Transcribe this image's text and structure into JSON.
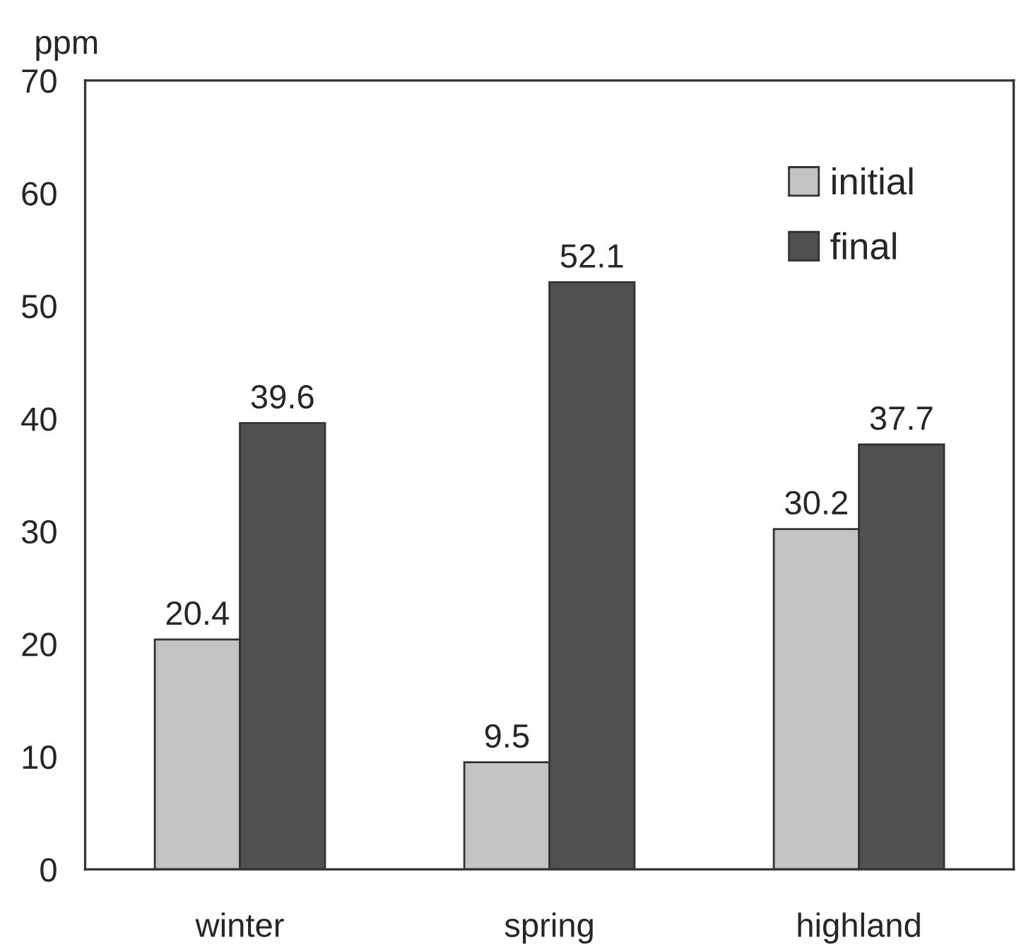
{
  "chart_data": {
    "type": "bar",
    "ylabel": "ppm",
    "categories": [
      "winter",
      "spring",
      "highland"
    ],
    "series": [
      {
        "name": "initial",
        "color": "#c4c4c4",
        "values": [
          20.4,
          9.5,
          30.2
        ]
      },
      {
        "name": "final",
        "color": "#505050",
        "values": [
          39.6,
          52.1,
          37.7
        ]
      }
    ],
    "ylim": [
      0,
      70
    ],
    "yticks": [
      0,
      10,
      20,
      30,
      40,
      50,
      60,
      70
    ],
    "data_labels": true,
    "legend": "top right",
    "grid": false
  }
}
